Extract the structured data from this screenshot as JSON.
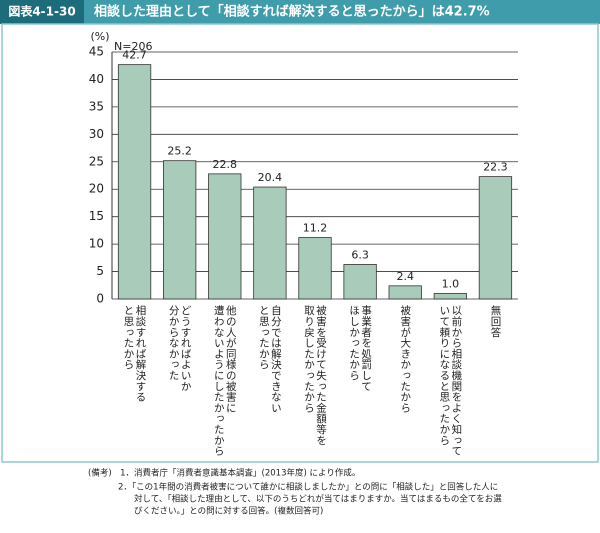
{
  "chart_data": {
    "type": "bar",
    "figure_label": "図表4-1-30",
    "title": "相談した理由として「相談すれば解決すると思ったから」は42.7%",
    "y_unit": "(%)",
    "n_label": "N=206",
    "categories": [
      [
        "相談すれば解決する",
        "と思ったから"
      ],
      [
        "どうすればよいか",
        "分からなかった"
      ],
      [
        "他の人が同様の被害に",
        "遭わないようにしたかったから"
      ],
      [
        "自分では解決できない",
        "と思ったから"
      ],
      [
        "被害を受けて失った金額等を",
        "取り戻したかったから"
      ],
      [
        "事業者を処罰して",
        "ほしかったから"
      ],
      [
        "被害が大きかったから"
      ],
      [
        "以前から相談機関をよく知って",
        "いて頼りになると思ったから"
      ],
      [
        "無回答"
      ]
    ],
    "values": [
      42.7,
      25.2,
      22.8,
      20.4,
      11.2,
      6.3,
      2.4,
      1.0,
      22.3
    ],
    "value_labels": [
      "42.7",
      "25.2",
      "22.8",
      "20.4",
      "11.2",
      "6.3",
      "2.4",
      "1.0",
      "22.3"
    ],
    "color": "#a9cbb9",
    "ylim": [
      0,
      45
    ],
    "yticks": [
      0,
      5,
      10,
      15,
      20,
      25,
      30,
      35,
      40,
      45
    ],
    "grid": true,
    "notes": [
      "(備考)　1．消費者庁「消費者意識基本調査」(2013年度) により作成。",
      "2．「この1年間の消費者被害について誰かに相談しましたか」との問に「相談した」と回答した人に",
      "対して、「相談した理由として、以下のうちどれが当てはまりますか。当てはまるもの全てをお選",
      "びください。」との問に対する回答。(複数回答可)"
    ]
  }
}
